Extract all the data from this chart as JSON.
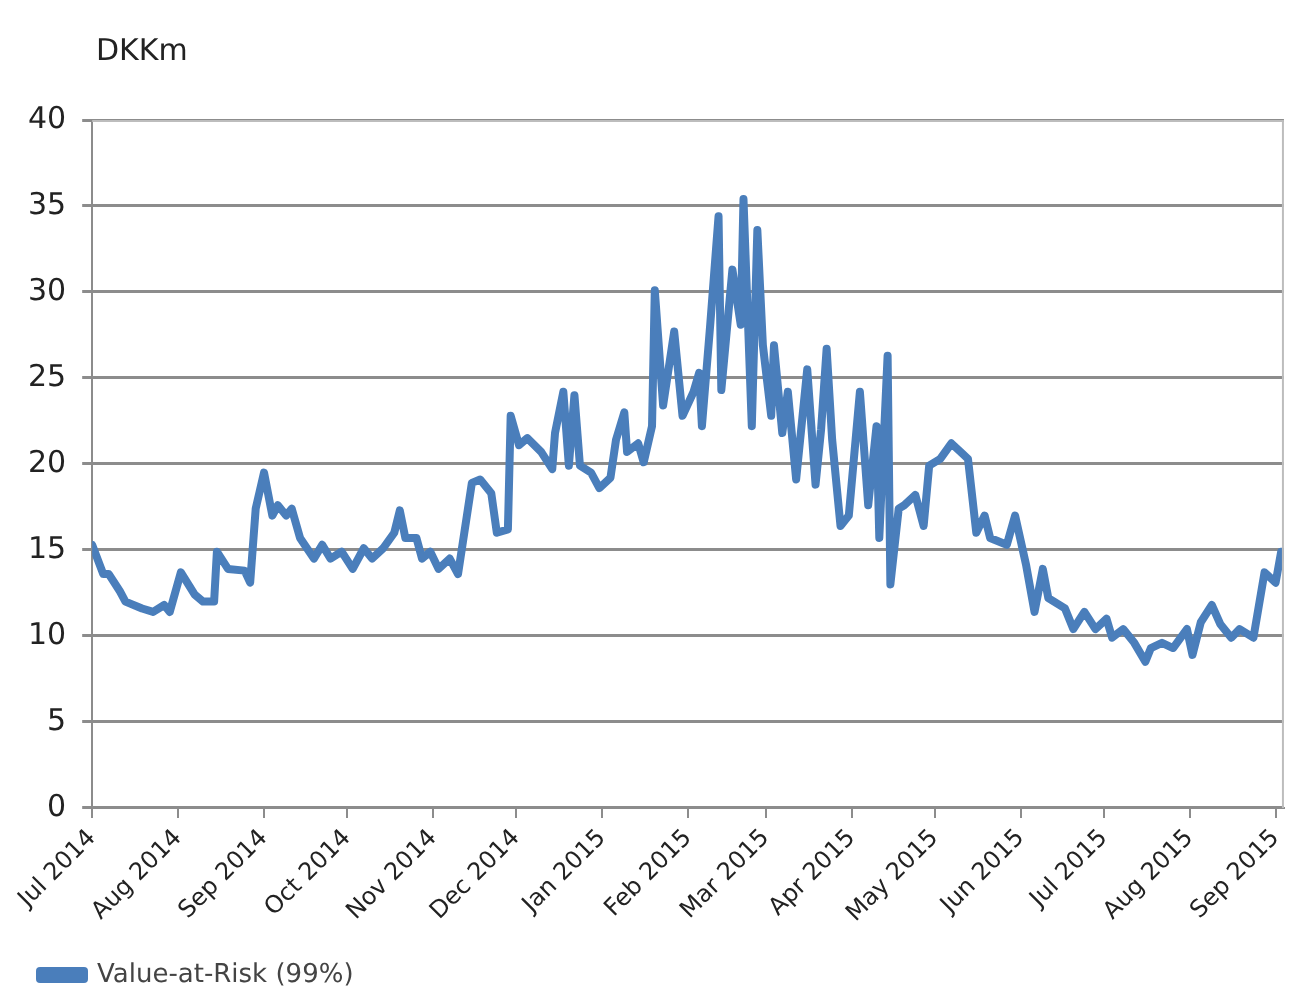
{
  "chart_data": {
    "type": "line",
    "ylabel": "DKKm",
    "legend": "bottom left",
    "grid": "y",
    "marker": "none",
    "line_style": "solid",
    "ylim": [
      0,
      40
    ],
    "yticks": [
      0,
      5,
      10,
      15,
      20,
      25,
      30,
      35,
      40
    ],
    "xlim": [
      "2014-07-01",
      "2015-09-04"
    ],
    "xticks": [
      {
        "value": "2014-07-01",
        "label": "Jul 2014"
      },
      {
        "value": "2014-08-01",
        "label": "Aug 2014"
      },
      {
        "value": "2014-09-01",
        "label": "Sep 2014"
      },
      {
        "value": "2014-10-01",
        "label": "Oct 2014"
      },
      {
        "value": "2014-11-01",
        "label": "Nov 2014"
      },
      {
        "value": "2014-12-01",
        "label": "Dec 2014"
      },
      {
        "value": "2015-01-01",
        "label": "Jan 2015"
      },
      {
        "value": "2015-02-01",
        "label": "Feb 2015"
      },
      {
        "value": "2015-03-01",
        "label": "Mar 2015"
      },
      {
        "value": "2015-04-01",
        "label": "Apr 2015"
      },
      {
        "value": "2015-05-01",
        "label": "May 2015"
      },
      {
        "value": "2015-06-01",
        "label": "Jun 2015"
      },
      {
        "value": "2015-07-01",
        "label": "Jul 2015"
      },
      {
        "value": "2015-08-01",
        "label": "Aug 2015"
      },
      {
        "value": "2015-09-01",
        "label": "Sep 2015"
      }
    ],
    "x": [
      "2014-07-01",
      "2014-07-05",
      "2014-07-07",
      "2014-07-11",
      "2014-07-13",
      "2014-07-19",
      "2014-07-23",
      "2014-07-27",
      "2014-07-29",
      "2014-08-02",
      "2014-08-07",
      "2014-08-10",
      "2014-08-14",
      "2014-08-15",
      "2014-08-19",
      "2014-08-25",
      "2014-08-27",
      "2014-08-29",
      "2014-09-01",
      "2014-09-04",
      "2014-09-06",
      "2014-09-09",
      "2014-09-11",
      "2014-09-14",
      "2014-09-19",
      "2014-09-22",
      "2014-09-25",
      "2014-09-29",
      "2014-10-03",
      "2014-10-07",
      "2014-10-10",
      "2014-10-14",
      "2014-10-18",
      "2014-10-20",
      "2014-10-22",
      "2014-10-26",
      "2014-10-28",
      "2014-10-31",
      "2014-11-03",
      "2014-11-07",
      "2014-11-10",
      "2014-11-15",
      "2014-11-18",
      "2014-11-22",
      "2014-11-24",
      "2014-11-28",
      "2014-11-29",
      "2014-12-02",
      "2014-12-05",
      "2014-12-10",
      "2014-12-14",
      "2014-12-15",
      "2014-12-18",
      "2014-12-20",
      "2014-12-22",
      "2014-12-24",
      "2014-12-28",
      "2014-12-31",
      "2015-01-04",
      "2015-01-06",
      "2015-01-09",
      "2015-01-10",
      "2015-01-14",
      "2015-01-16",
      "2015-01-19",
      "2015-01-20",
      "2015-01-23",
      "2015-01-27",
      "2015-01-30",
      "2015-02-03",
      "2015-02-05",
      "2015-02-06",
      "2015-02-09",
      "2015-02-12",
      "2015-02-13",
      "2015-02-17",
      "2015-02-20",
      "2015-02-21",
      "2015-02-24",
      "2015-02-26",
      "2015-02-28",
      "2015-03-03",
      "2015-03-04",
      "2015-03-07",
      "2015-03-09",
      "2015-03-12",
      "2015-03-16",
      "2015-03-19",
      "2015-03-21",
      "2015-03-23",
      "2015-03-25",
      "2015-03-28",
      "2015-03-31",
      "2015-04-04",
      "2015-04-07",
      "2015-04-10",
      "2015-04-11",
      "2015-04-14",
      "2015-04-15",
      "2015-04-18",
      "2015-04-20",
      "2015-04-24",
      "2015-04-27",
      "2015-04-29",
      "2015-05-03",
      "2015-05-07",
      "2015-05-11",
      "2015-05-13",
      "2015-05-16",
      "2015-05-19",
      "2015-05-21",
      "2015-05-27",
      "2015-05-30",
      "2015-06-03",
      "2015-06-06",
      "2015-06-09",
      "2015-06-11",
      "2015-06-17",
      "2015-06-20",
      "2015-06-24",
      "2015-06-28",
      "2015-07-02",
      "2015-07-04",
      "2015-07-08",
      "2015-07-12",
      "2015-07-16",
      "2015-07-18",
      "2015-07-22",
      "2015-07-26",
      "2015-07-31",
      "2015-08-02",
      "2015-08-05",
      "2015-08-09",
      "2015-08-12",
      "2015-08-16",
      "2015-08-19",
      "2015-08-24",
      "2015-08-28",
      "2015-09-01",
      "2015-09-03"
    ],
    "series": [
      {
        "name": "Value-at-Risk (99%)",
        "color": "#4a7ebb",
        "values": [
          15.3,
          13.6,
          13.6,
          12.6,
          12.0,
          11.6,
          11.4,
          11.8,
          11.4,
          13.7,
          12.4,
          12.0,
          12.0,
          14.9,
          13.9,
          13.8,
          13.1,
          17.4,
          19.5,
          17.0,
          17.6,
          17.0,
          17.4,
          15.7,
          14.5,
          15.3,
          14.5,
          14.9,
          13.9,
          15.1,
          14.5,
          15.1,
          16.0,
          17.3,
          15.7,
          15.7,
          14.5,
          14.9,
          13.9,
          14.5,
          13.6,
          18.9,
          19.1,
          18.3,
          16.0,
          16.2,
          22.8,
          21.1,
          21.5,
          20.7,
          19.7,
          21.8,
          24.2,
          19.9,
          24.0,
          19.9,
          19.5,
          18.6,
          19.2,
          21.4,
          23.0,
          20.7,
          21.2,
          20.1,
          22.2,
          30.1,
          23.4,
          27.7,
          22.8,
          24.2,
          25.3,
          22.2,
          28.1,
          34.4,
          24.3,
          31.3,
          28.1,
          35.4,
          22.2,
          33.6,
          26.9,
          22.8,
          26.9,
          21.8,
          24.2,
          19.1,
          25.5,
          18.8,
          22.0,
          26.7,
          21.4,
          16.4,
          17.0,
          24.2,
          17.6,
          22.2,
          15.7,
          26.3,
          13.0,
          17.4,
          17.6,
          18.2,
          16.4,
          19.9,
          20.3,
          21.2,
          20.6,
          20.3,
          16.0,
          17.0,
          15.7,
          15.3,
          17.0,
          14.1,
          11.4,
          13.9,
          12.2,
          11.6,
          10.4,
          11.4,
          10.4,
          11.0,
          9.9,
          10.4,
          9.6,
          8.5,
          9.3,
          9.6,
          9.3,
          10.4,
          8.9,
          10.8,
          11.8,
          10.7,
          9.9,
          10.4,
          9.9,
          13.7,
          13.1,
          14.9
        ]
      }
    ]
  }
}
